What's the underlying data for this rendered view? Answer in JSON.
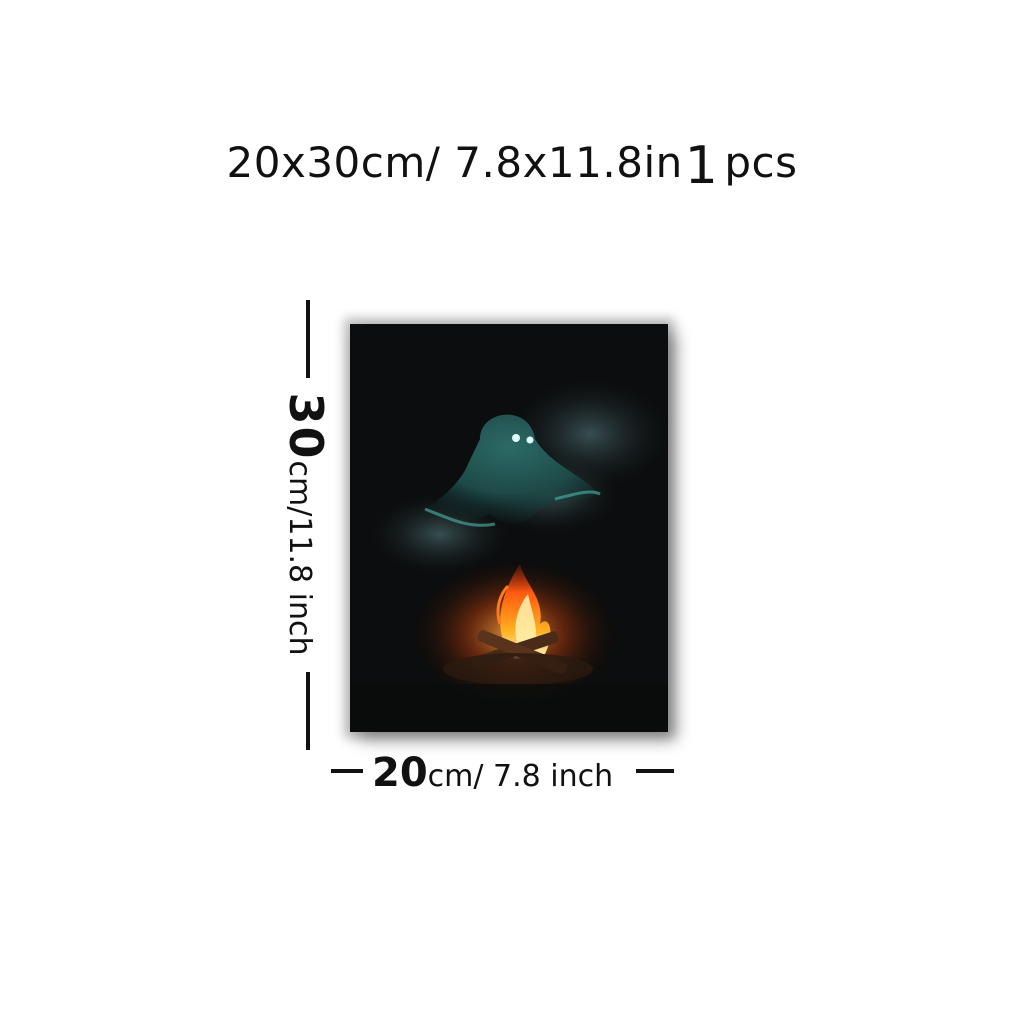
{
  "header": {
    "size_text": "20x30cm/ 7.8x11.8in",
    "quantity": "1",
    "unit": "pcs"
  },
  "height_dimension": {
    "value": "30",
    "unit_text": "cm/11.8 inch"
  },
  "width_dimension": {
    "value": "20",
    "unit_text": "cm/ 7.8 inch"
  },
  "colors": {
    "background": "#ffffff",
    "canvas_base": "#0b0d0e",
    "ghost": "#3f8f8a",
    "flame": "#ff7a1a"
  }
}
